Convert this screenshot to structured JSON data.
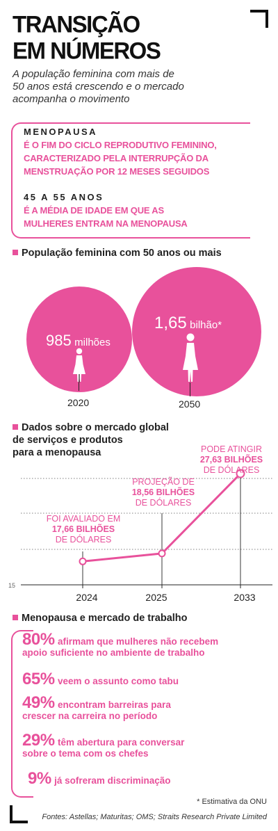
{
  "header": {
    "title_line1": "TRANSIÇÃO",
    "title_line2": "EM NÚMEROS",
    "subtitle_line1": "A população feminina com mais de",
    "subtitle_line2": "50 anos está crescendo e o mercado",
    "subtitle_line3": "acompanha o movimento"
  },
  "definitions": {
    "term1": "MENOPAUSA",
    "def1_line1": "É O FIM DO CICLO REPRODUTIVO FEMININO,",
    "def1_line2": "CARACTERIZADO PELA INTERRUPÇÃO DA",
    "def1_line3": "MENSTRUAÇÃO POR 12 MESES SEGUIDOS",
    "term2": "45 A 55 ANOS",
    "def2_line1": "É A MÉDIA DE IDADE EM QUE AS",
    "def2_line2": "MULHERES ENTRAM NA MENOPAUSA"
  },
  "population": {
    "heading": "População feminina com 50 anos ou mais",
    "items": [
      {
        "year": "2020",
        "number": "985",
        "unit": "milhões"
      },
      {
        "year": "2050",
        "number": "1,65",
        "unit": "bilhão*"
      }
    ]
  },
  "market": {
    "heading_line1": "Dados sobre o mercado global",
    "heading_line2": "de serviços e produtos",
    "heading_line3": "para a menopausa",
    "axis_label": "15",
    "callouts": [
      {
        "line1": "FOI AVALIADO EM",
        "line2": "17,66 BILHÕES",
        "line3": "DE DÓLARES"
      },
      {
        "line1": "PROJEÇÃO DE",
        "line2": "18,56 BILHÕES",
        "line3": "DE DÓLARES"
      },
      {
        "line1": "PODE ATINGIR",
        "line2": "27,63 BILHÕES",
        "line3": "DE DÓLARES"
      }
    ]
  },
  "chart_data": {
    "type": "line",
    "categories": [
      "2024",
      "2025",
      "2033"
    ],
    "series": [
      {
        "values": [
          17.66,
          18.56,
          27.63
        ]
      }
    ],
    "ylim": [
      15,
      30
    ],
    "grid": true
  },
  "work": {
    "heading": "Menopausa e mercado de trabalho",
    "stats": [
      {
        "pct": "80%",
        "text1": "afirmam que mulheres não recebem",
        "text2": "apoio suficiente no ambiente de trabalho"
      },
      {
        "pct": "65%",
        "text1": "veem o assunto como tabu",
        "text2": ""
      },
      {
        "pct": "49%",
        "text1": "encontram barreiras para",
        "text2": "crescer na carreira no período"
      },
      {
        "pct": "29%",
        "text1": "têm abertura para conversar",
        "text2": "sobre o tema com os chefes"
      },
      {
        "pct": "9%",
        "text1": "já sofreram discriminação",
        "text2": ""
      }
    ]
  },
  "footer": {
    "note": "* Estimativa da ONU",
    "sources": "Fontes: Astellas; Maturitas; OMS; Straits Research Private Limited"
  },
  "colors": {
    "accent": "#e8519b",
    "text": "#222222"
  },
  "icons": [
    "woman-figure-icon",
    "woman-figure-icon"
  ]
}
